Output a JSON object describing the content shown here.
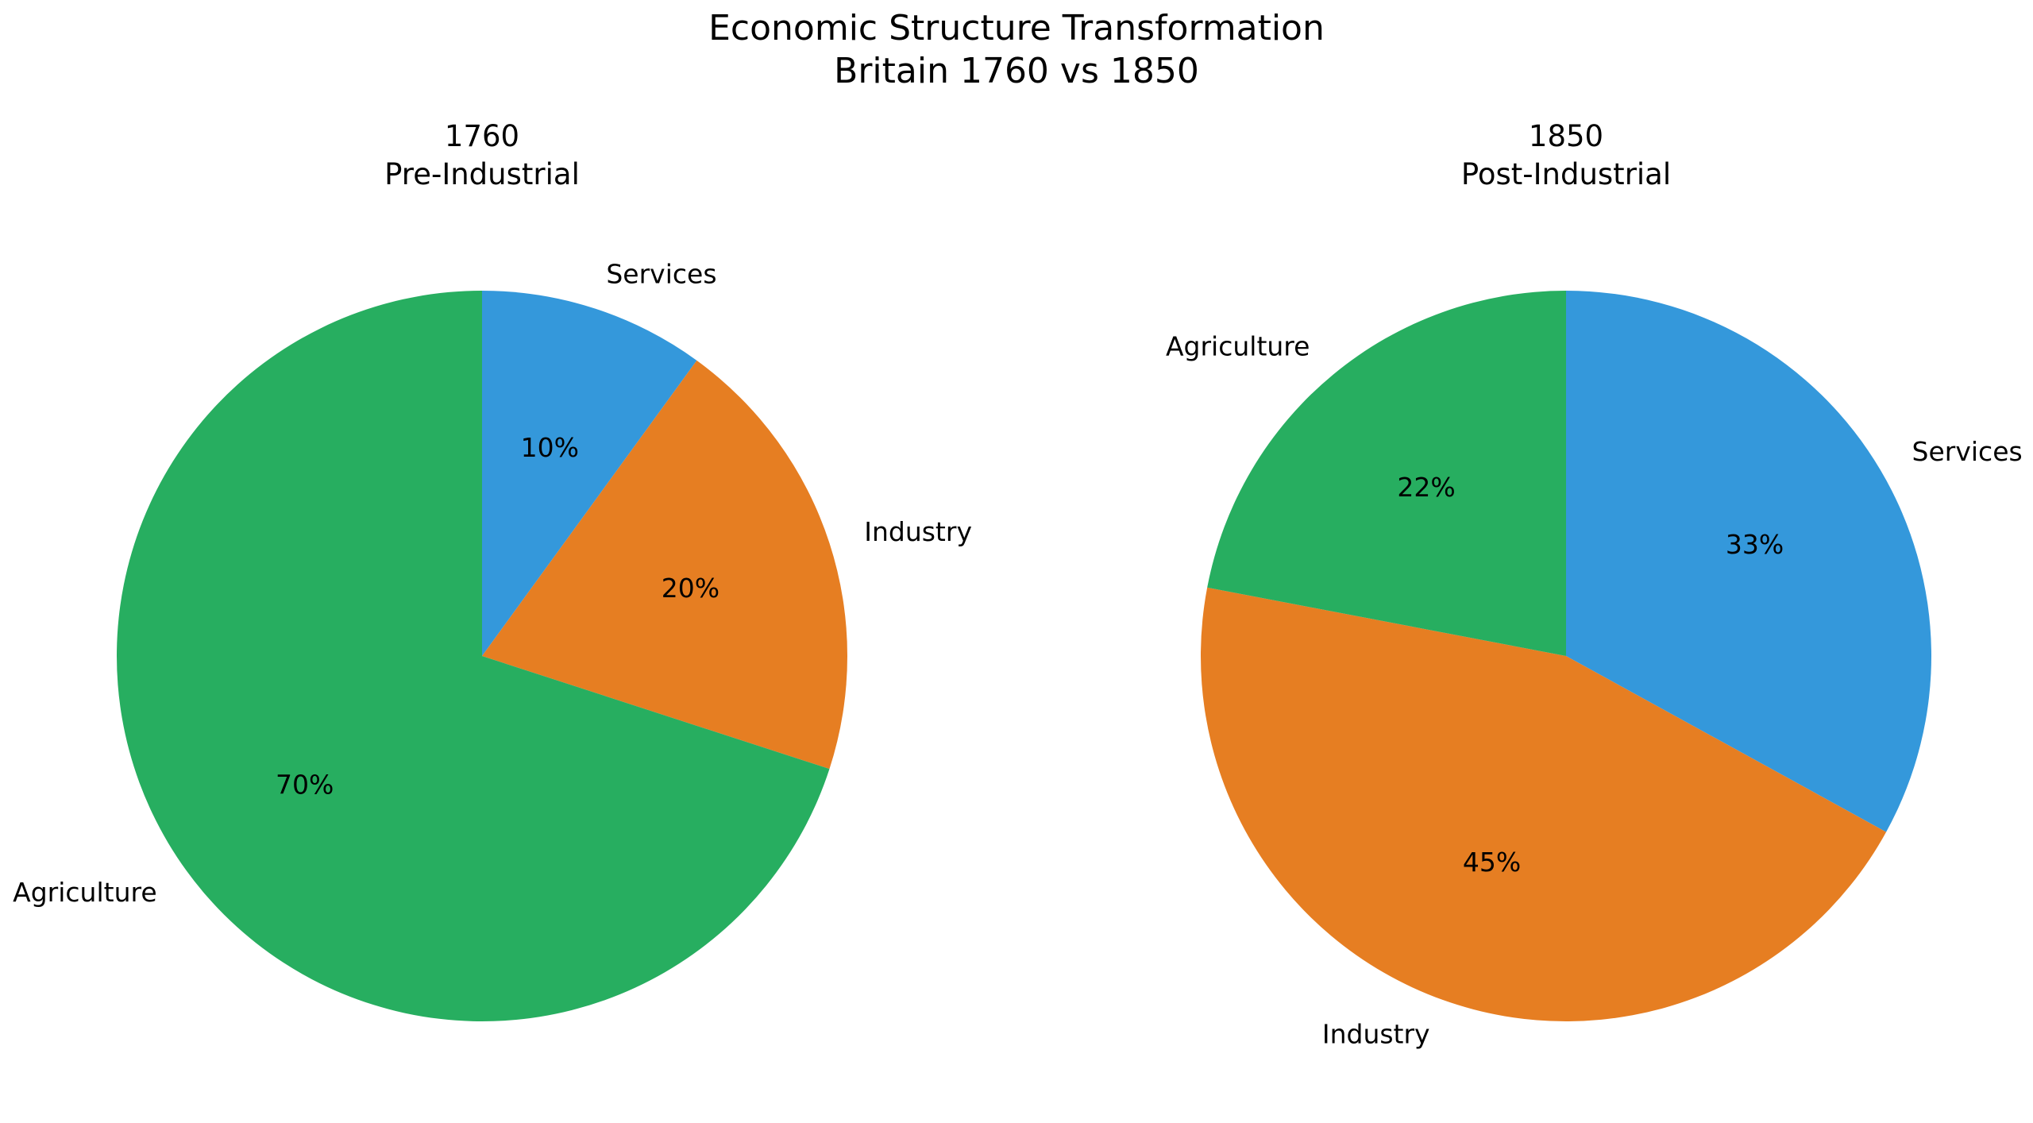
{
  "figure": {
    "title_line1": "Economic Structure Transformation",
    "title_line2": "Britain 1760 vs 1850"
  },
  "chart_data": [
    {
      "type": "pie",
      "title_line1": "1760",
      "title_line2": "Pre-Industrial",
      "start_angle_deg": 90,
      "direction": "clockwise",
      "slices": [
        {
          "label": "Services",
          "value": 10,
          "pct_label": "10%",
          "color": "#3498db"
        },
        {
          "label": "Industry",
          "value": 20,
          "pct_label": "20%",
          "color": "#e67e22"
        },
        {
          "label": "Agriculture",
          "value": 70,
          "pct_label": "70%",
          "color": "#27ae60"
        }
      ]
    },
    {
      "type": "pie",
      "title_line1": "1850",
      "title_line2": "Post-Industrial",
      "start_angle_deg": 90,
      "direction": "clockwise",
      "slices": [
        {
          "label": "Services",
          "value": 33,
          "pct_label": "33%",
          "color": "#3498db"
        },
        {
          "label": "Industry",
          "value": 45,
          "pct_label": "45%",
          "color": "#e67e22"
        },
        {
          "label": "Agriculture",
          "value": 22,
          "pct_label": "22%",
          "color": "#27ae60"
        }
      ]
    }
  ]
}
